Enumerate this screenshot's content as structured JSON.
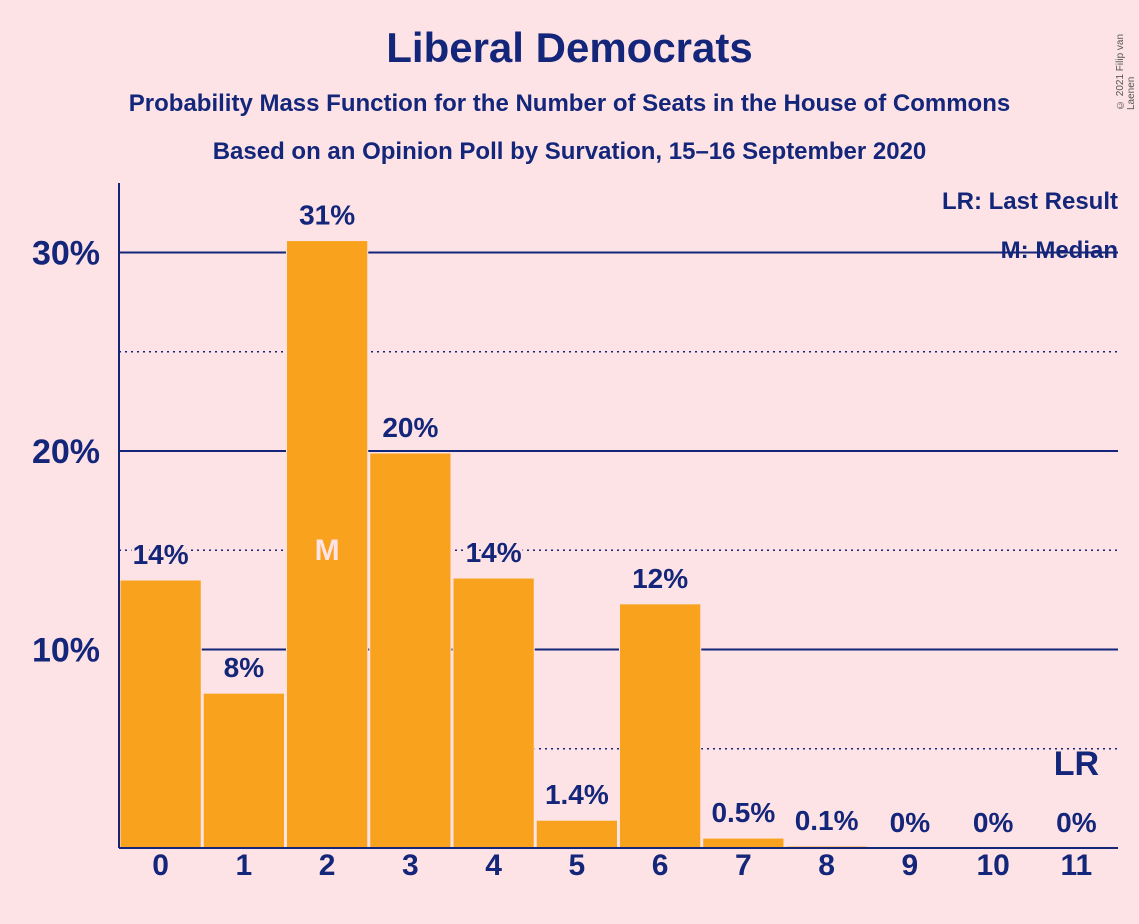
{
  "header": {
    "title": "Liberal Democrats",
    "subtitle1": "Probability Mass Function for the Number of Seats in the House of Commons",
    "subtitle2": "Based on an Opinion Poll by Survation, 15–16 September 2020",
    "copyright": "© 2021 Filip van Laenen"
  },
  "legend": {
    "last_result": "LR: Last Result",
    "median": "M: Median"
  },
  "colors": {
    "background": "#fde3e6",
    "bar": "#f9a21e",
    "text": "#14267a",
    "median_marker": "#fde3e6"
  },
  "chart_data": {
    "type": "bar",
    "title": "Liberal Democrats",
    "categories": [
      "0",
      "1",
      "2",
      "3",
      "4",
      "5",
      "6",
      "7",
      "8",
      "9",
      "10",
      "11"
    ],
    "values": [
      13.5,
      7.8,
      30.6,
      19.9,
      13.6,
      1.4,
      12.3,
      0.5,
      0.1,
      0.0,
      0.0,
      0.0
    ],
    "data_labels": [
      "14%",
      "8%",
      "31%",
      "20%",
      "14%",
      "1.4%",
      "12%",
      "0.5%",
      "0.1%",
      "0%",
      "0%",
      "0%"
    ],
    "ylim": [
      0,
      33.5
    ],
    "y_ticks": [
      10,
      20,
      30
    ],
    "y_tick_labels": [
      "10%",
      "20%",
      "30%"
    ],
    "minor_gridlines": [
      5,
      15,
      25
    ],
    "median_index": 2,
    "median_label": "M",
    "last_result_index": 11,
    "last_result_label": "LR",
    "legend_position": "top-right"
  }
}
